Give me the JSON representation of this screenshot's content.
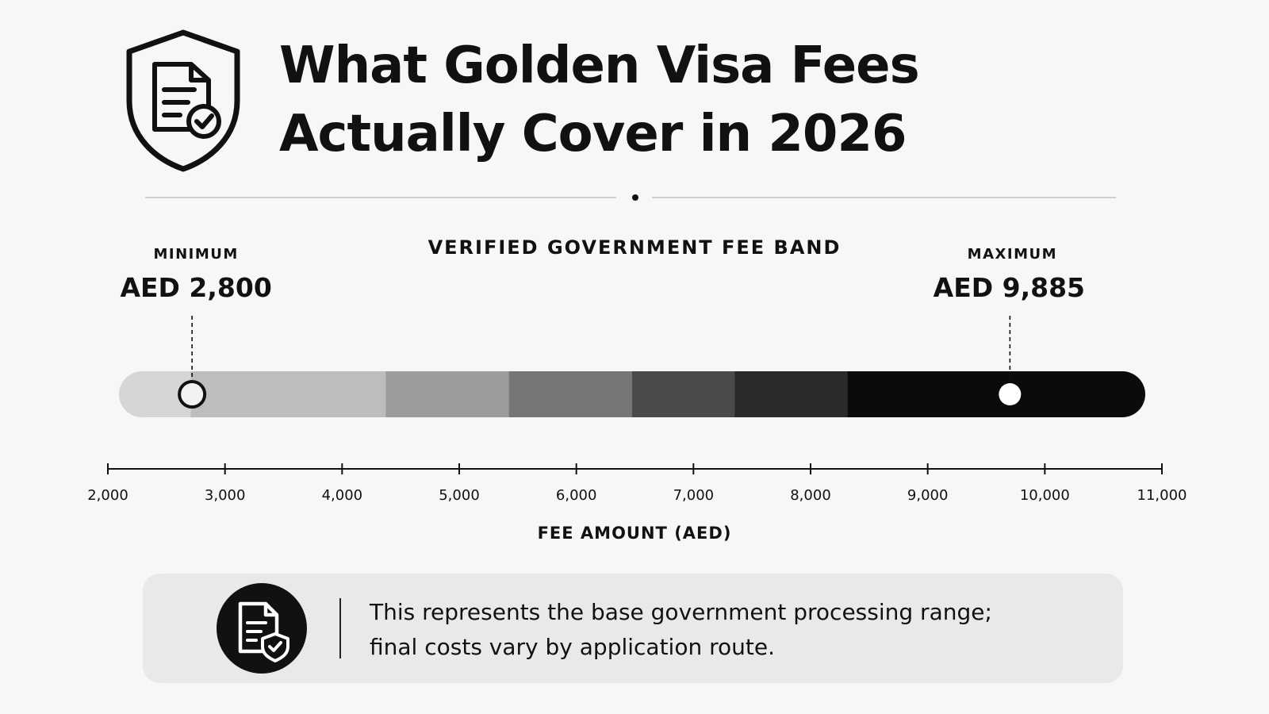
{
  "header": {
    "title_line1": "What Golden Visa Fees",
    "title_line2": "Actually Cover in 2026",
    "icon": "shield-document-check-icon"
  },
  "chart_data": {
    "type": "range-band",
    "title": "VERIFIED GOVERNMENT FEE BAND",
    "xlabel": "FEE AMOUNT (AED)",
    "xlim": [
      2000,
      11000
    ],
    "ticks": [
      2000,
      3000,
      4000,
      5000,
      6000,
      7000,
      8000,
      9000,
      10000,
      11000
    ],
    "tick_labels": [
      "2,000",
      "3,000",
      "4,000",
      "5,000",
      "6,000",
      "7,000",
      "8,000",
      "9,000",
      "10,000",
      "11,000"
    ],
    "minimum": {
      "label": "MINIMUM",
      "display": "AED 2,800",
      "value": 2800
    },
    "maximum": {
      "label": "MAXIMUM",
      "display": "AED 9,885",
      "value": 9885
    },
    "gradient_colors": [
      "#d6d6d6",
      "#bdbdbd",
      "#9c9c9c",
      "#767676",
      "#4a4a4a",
      "#2a2a2a",
      "#0b0b0b"
    ]
  },
  "note": {
    "icon": "document-shield-icon",
    "text_line1": "This represents the base government processing range;",
    "text_line2": "final costs vary by application route."
  }
}
